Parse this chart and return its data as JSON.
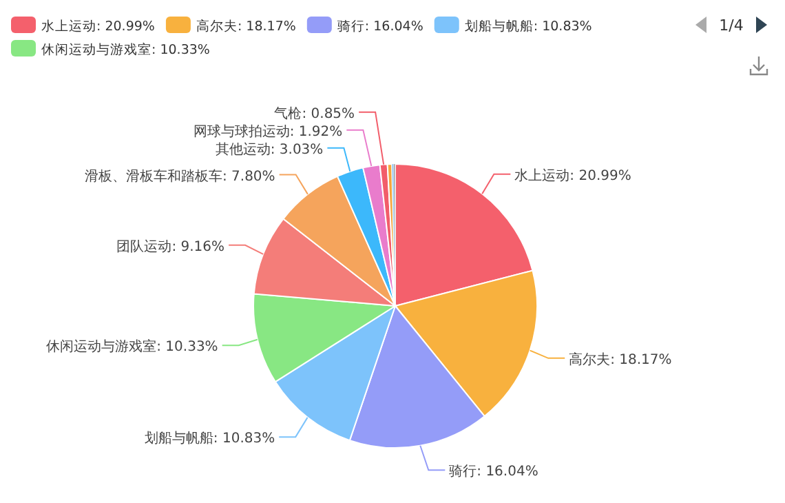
{
  "chart_data": {
    "type": "pie",
    "categories": [
      "水上运动",
      "高尔夫",
      "骑行",
      "划船与帆船",
      "休闲运动与游戏室",
      "团队运动",
      "滑板、滑板车和踏板车",
      "其他运动",
      "网球与球拍运动",
      "气枪",
      null,
      null,
      null
    ],
    "values": [
      20.99,
      18.17,
      16.04,
      10.83,
      10.33,
      9.16,
      7.8,
      3.03,
      1.92,
      0.85,
      0.5,
      0.2,
      0.18
    ],
    "value_labels": [
      "20.99%",
      "18.17%",
      "16.04%",
      "10.83%",
      "10.33%",
      "9.16%",
      "7.80%",
      "3.03%",
      "1.92%",
      "0.85%",
      null,
      null,
      null
    ],
    "colors": [
      "#f4606c",
      "#f8b13e",
      "#949cf8",
      "#7dc3fb",
      "#88e783",
      "#f47d79",
      "#f5a45c",
      "#3cb8fb",
      "#e97ccc",
      "#f25d6a",
      "#f5a63c",
      "#8fc6f5",
      "#a8a8a8"
    ],
    "legend": "top",
    "annotations": [
      "1/4"
    ]
  }
}
